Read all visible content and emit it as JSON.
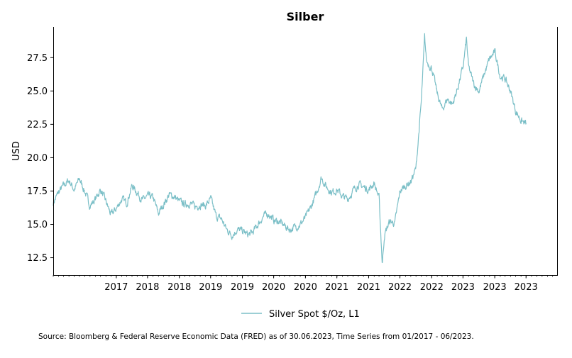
{
  "chart_data": {
    "type": "line",
    "title": "Silber",
    "xlabel": "",
    "ylabel": "USD",
    "x_range": [
      "2016-01-01",
      "2023-12-31"
    ],
    "ylim": [
      11.2,
      29.8
    ],
    "y_ticks": [
      12.5,
      15.0,
      17.5,
      20.0,
      22.5,
      25.0,
      27.5
    ],
    "y_tick_labels": [
      "12.5",
      "15.0",
      "17.5",
      "20.0",
      "22.5",
      "25.0",
      "27.5"
    ],
    "x_ticks": [
      "2016-12-31",
      "2017-06-30",
      "2017-12-31",
      "2018-06-30",
      "2018-12-31",
      "2019-06-30",
      "2019-12-31",
      "2020-06-30",
      "2020-12-31",
      "2021-06-30",
      "2021-12-31",
      "2022-06-30",
      "2022-12-31",
      "2023-06-30"
    ],
    "x_tick_labels": [
      "2017",
      "2018",
      "2018",
      "2019",
      "2019",
      "2020",
      "2020",
      "2021",
      "2021",
      "2022",
      "2022",
      "2023",
      "2023",
      "2023"
    ],
    "grid": false,
    "legend_position": "bottom-center",
    "series": [
      {
        "name": "Silver Spot  $/Oz, L1",
        "color": "#7bbfc7",
        "points": [
          [
            "2016-01-01",
            16.6
          ],
          [
            "2016-02-01",
            17.4
          ],
          [
            "2016-03-01",
            17.9
          ],
          [
            "2016-04-01",
            18.3
          ],
          [
            "2016-05-01",
            17.6
          ],
          [
            "2016-06-01",
            18.4
          ],
          [
            "2016-07-01",
            17.5
          ],
          [
            "2016-08-01",
            16.4
          ],
          [
            "2016-09-01",
            16.9
          ],
          [
            "2016-10-01",
            17.6
          ],
          [
            "2016-11-01",
            16.7
          ],
          [
            "2016-12-01",
            15.7
          ],
          [
            "2017-01-01",
            16.2
          ],
          [
            "2017-02-01",
            16.9
          ],
          [
            "2017-03-01",
            16.6
          ],
          [
            "2017-04-01",
            17.9
          ],
          [
            "2017-05-01",
            17.4
          ],
          [
            "2017-06-01",
            16.8
          ],
          [
            "2017-07-01",
            17.1
          ],
          [
            "2017-08-01",
            17.0
          ],
          [
            "2017-09-01",
            15.8
          ],
          [
            "2017-10-01",
            16.5
          ],
          [
            "2017-11-01",
            17.2
          ],
          [
            "2017-12-01",
            17.1
          ],
          [
            "2018-01-01",
            16.7
          ],
          [
            "2018-02-01",
            16.5
          ],
          [
            "2018-03-01",
            16.6
          ],
          [
            "2018-04-01",
            16.3
          ],
          [
            "2018-05-01",
            16.5
          ],
          [
            "2018-06-01",
            16.4
          ],
          [
            "2018-07-01",
            16.9
          ],
          [
            "2018-08-01",
            15.6
          ],
          [
            "2018-09-01",
            15.4
          ],
          [
            "2018-10-01",
            14.6
          ],
          [
            "2018-11-01",
            14.2
          ],
          [
            "2018-12-01",
            14.6
          ],
          [
            "2019-01-01",
            14.5
          ],
          [
            "2019-02-01",
            14.2
          ],
          [
            "2019-03-01",
            14.4
          ],
          [
            "2019-04-01",
            15.0
          ],
          [
            "2019-05-01",
            15.6
          ],
          [
            "2019-06-01",
            15.8
          ],
          [
            "2019-07-01",
            15.3
          ],
          [
            "2019-08-01",
            15.2
          ],
          [
            "2019-09-01",
            14.9
          ],
          [
            "2019-10-01",
            14.6
          ],
          [
            "2019-11-01",
            14.8
          ],
          [
            "2019-12-01",
            15.0
          ],
          [
            "2020-01-01",
            15.5
          ],
          [
            "2020-02-01",
            16.3
          ],
          [
            "2020-03-01",
            17.2
          ],
          [
            "2020-04-01",
            18.5
          ],
          [
            "2020-05-01",
            17.8
          ],
          [
            "2020-06-01",
            17.4
          ],
          [
            "2020-07-01",
            17.6
          ],
          [
            "2020-08-01",
            17.1
          ],
          [
            "2020-09-01",
            16.9
          ],
          [
            "2020-10-01",
            17.5
          ],
          [
            "2020-11-01",
            18.0
          ],
          [
            "2020-12-01",
            17.8
          ],
          [
            "2021-01-01",
            17.6
          ],
          [
            "2021-02-01",
            18.1
          ],
          [
            "2021-03-01",
            17.0
          ],
          [
            "2021-03-20",
            12.0
          ],
          [
            "2021-04-01",
            14.2
          ],
          [
            "2021-05-01",
            15.2
          ],
          [
            "2021-06-01",
            15.1
          ],
          [
            "2021-07-01",
            17.5
          ],
          [
            "2021-08-01",
            17.9
          ],
          [
            "2021-09-01",
            18.2
          ],
          [
            "2021-10-01",
            19.2
          ],
          [
            "2021-11-01",
            24.2
          ],
          [
            "2021-11-20",
            29.0
          ],
          [
            "2021-12-01",
            27.2
          ],
          [
            "2022-01-01",
            26.7
          ],
          [
            "2022-02-01",
            24.8
          ],
          [
            "2022-03-01",
            23.6
          ],
          [
            "2022-04-01",
            24.4
          ],
          [
            "2022-05-01",
            24.0
          ],
          [
            "2022-06-01",
            25.3
          ],
          [
            "2022-07-01",
            26.8
          ],
          [
            "2022-07-20",
            28.9
          ],
          [
            "2022-08-01",
            26.8
          ],
          [
            "2022-09-01",
            25.5
          ],
          [
            "2022-10-01",
            25.0
          ],
          [
            "2022-11-01",
            26.3
          ],
          [
            "2022-12-01",
            27.4
          ],
          [
            "2023-01-01",
            27.9
          ],
          [
            "2023-02-01",
            26.1
          ],
          [
            "2023-03-01",
            25.9
          ],
          [
            "2023-04-01",
            25.0
          ],
          [
            "2023-05-01",
            23.5
          ],
          [
            "2023-06-01",
            22.8
          ],
          [
            "2023-07-01",
            22.5
          ]
        ]
      }
    ]
  },
  "footer": {
    "source_note": "Source: Bloomberg & Federal Reserve Economic Data (FRED) as of 30.06.2023, Time Series from 01/2017 - 06/2023."
  }
}
